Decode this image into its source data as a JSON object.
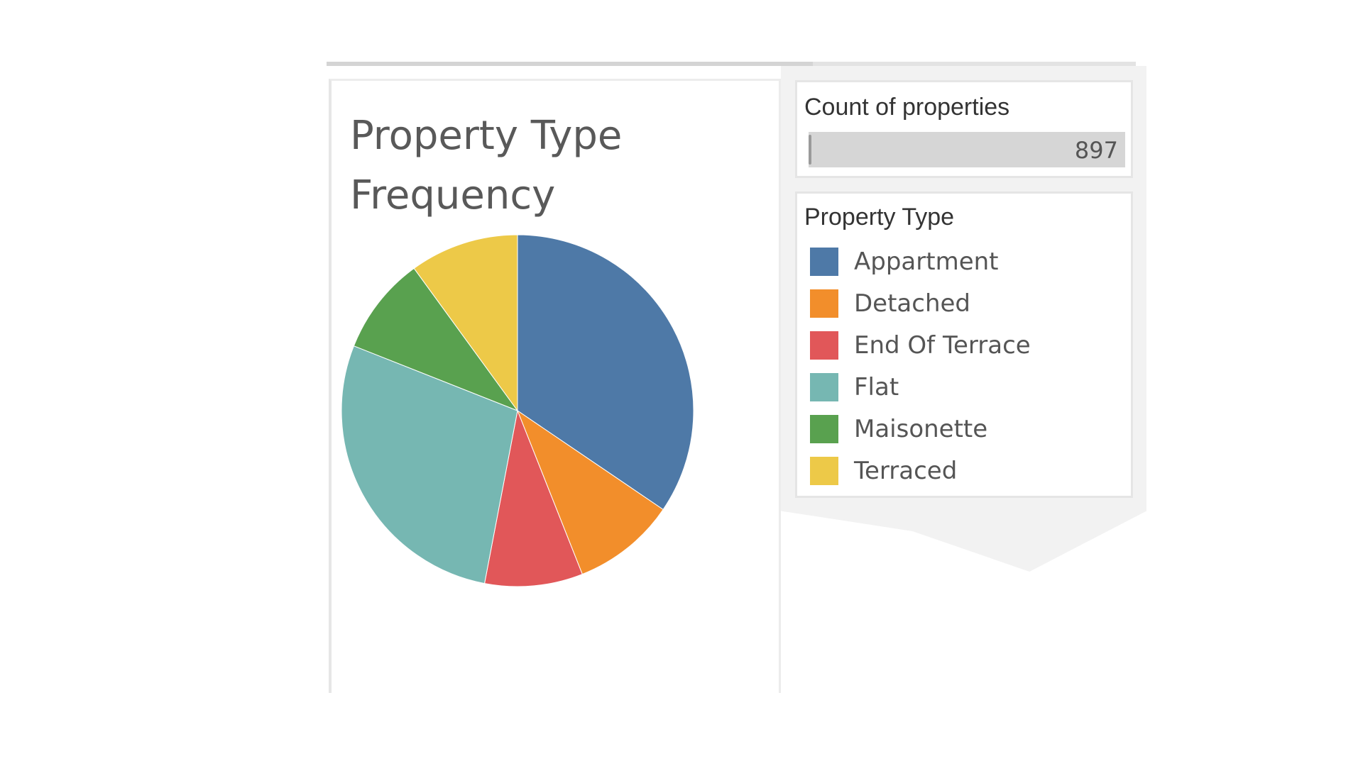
{
  "chart_data": {
    "type": "pie",
    "title": "Property Type\nFrequency",
    "categories": [
      "Appartment",
      "Detached",
      "End Of Terrace",
      "Flat",
      "Maisonette",
      "Terraced"
    ],
    "values": [
      34.5,
      9.5,
      9.0,
      28.0,
      9.0,
      10.0
    ],
    "slice_order": [
      "Appartment",
      "Detached",
      "End Of Terrace",
      "Flat",
      "Maisonette",
      "Terraced"
    ],
    "legend_position": "right",
    "colors": {
      "Appartment": "#4e79a7",
      "Detached": "#f28e2b",
      "End Of Terrace": "#e15759",
      "Flat": "#76b7b2",
      "Maisonette": "#59a14f",
      "Terraced": "#edc948"
    }
  },
  "count_card": {
    "title": "Count of properties",
    "value": "897"
  },
  "legend": {
    "title": "Property Type",
    "items": [
      {
        "label": "Appartment",
        "color": "#4e79a7"
      },
      {
        "label": "Detached",
        "color": "#f28e2b"
      },
      {
        "label": "End Of Terrace",
        "color": "#e15759"
      },
      {
        "label": "Flat",
        "color": "#76b7b2"
      },
      {
        "label": "Maisonette",
        "color": "#59a14f"
      },
      {
        "label": "Terraced",
        "color": "#edc948"
      }
    ]
  }
}
